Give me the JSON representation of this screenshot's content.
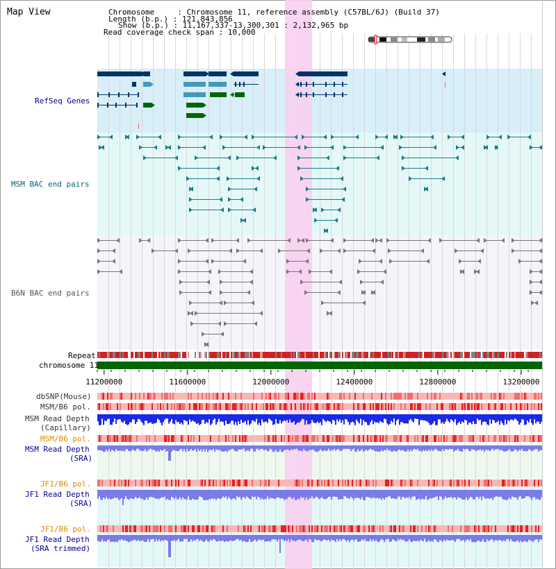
{
  "app": {
    "title": "Map View"
  },
  "header": {
    "lines": [
      "Chromosome     : Chromosome 11, reference assembly (C57BL/6J) (Build 37)",
      "Length (b.p.) : 121,843,856",
      "Show (b.p.) : 11,167,337-13,300,301 : 2,132,965 bp",
      "Read coverage check span : 10,000"
    ]
  },
  "tracks": {
    "refseq": {
      "label": "RefSeq Genes",
      "color": "#000099"
    },
    "msm_bac": {
      "label": "MSM BAC end pairs",
      "color": "#006677"
    },
    "b6n_bac": {
      "label": "B6N BAC end pairs",
      "color": "#555555"
    },
    "repeat": {
      "label": "Repeat"
    },
    "chromosome": {
      "label": "chromosome 11"
    },
    "dbsnp": {
      "label": "dbSNP(Mouse)"
    },
    "msm_b6_pol": {
      "label": "MSM/B6 pol."
    },
    "msm_depth_cap": {
      "label_1": "MSM Read Depth",
      "label_2": "(Capillary)"
    },
    "msm_b6_pol_sra": {
      "label": "MSM/B6 pol.",
      "color": "#e08800"
    },
    "msm_depth_sra": {
      "label_1": "MSM Read Depth",
      "label_2": "(SRA)",
      "color": "#000099"
    },
    "jf1_b6_pol": {
      "label": "JF1/B6 pol.",
      "color": "#e08800"
    },
    "jf1_depth_sra": {
      "label_1": "JF1 Read Depth",
      "label_2": "(SRA)",
      "color": "#000099"
    },
    "jf1_b6_pol_trim": {
      "label": "JF1/B6 pol.",
      "color": "#e08800"
    },
    "jf1_depth_trim": {
      "label_1": "JF1 Read Depth",
      "label_2": "(SRA trimmed)",
      "color": "#000099"
    }
  },
  "axis": {
    "ticks": [
      "11200000",
      "11600000",
      "12000000",
      "12400000",
      "12800000",
      "13200000"
    ],
    "tick_values": [
      11200000,
      11600000,
      12000000,
      12400000,
      12800000,
      13200000
    ],
    "range": [
      11167337,
      13300301
    ]
  },
  "highlight": {
    "start": 12067337,
    "end": 12197337,
    "color": "#f8d0f0"
  },
  "colors": {
    "refseq_bg": "#d8eef8",
    "msm_bg": "#e4f8f8",
    "b6n_bg": "#f4f4fa",
    "gene_dark": "#003366",
    "gene_mid": "#4499bb",
    "gene_green": "#006600",
    "chromosome": "#006600",
    "depth_cap": "#1a2ae8",
    "depth_sra": "#7a7ae8",
    "pol_red": "#e02020"
  }
}
